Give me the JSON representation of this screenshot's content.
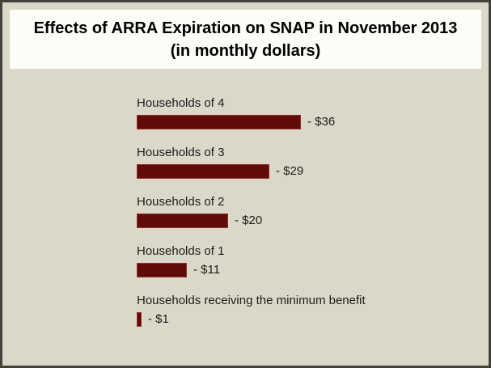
{
  "title": {
    "line1": "Effects of ARRA Expiration on SNAP in November 2013",
    "line2": "(in monthly dollars)"
  },
  "chart_data": {
    "type": "bar",
    "orientation": "horizontal",
    "title": "Effects of ARRA Expiration on SNAP in November 2013 (in monthly dollars)",
    "categories": [
      "Households of 4",
      "Households of 3",
      "Households of 2",
      "Households of 1",
      "Households receiving the minimum benefit"
    ],
    "values": [
      -36,
      -29,
      -20,
      -11,
      -1
    ],
    "value_labels": [
      "- $36",
      "- $29",
      "- $20",
      "- $11",
      "- $1"
    ],
    "xlabel": "",
    "ylabel": "",
    "xlim": [
      0,
      36
    ],
    "grid": false,
    "legend": false,
    "colors": {
      "bar_fill": "#600a0a",
      "bar_border": "#8f3128",
      "background": "#dcd8c9",
      "title_background": "#fdfdf8",
      "text": "#1b1b1b",
      "canvas_border": "#45413a"
    }
  }
}
